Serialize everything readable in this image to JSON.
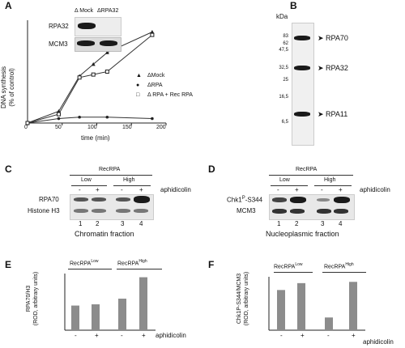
{
  "panels": {
    "A": {
      "letter": "A",
      "ylabel": "DNA synthesis\n(% of control)",
      "ylabel_line1": "DNA synthesis",
      "ylabel_line2": "(% of control)",
      "xlabel": "time (min)",
      "xticks": [
        "0",
        "50",
        "100",
        "150",
        "200"
      ],
      "inset": {
        "col1": "Δ Mock",
        "col2": "ΔRPA32",
        "row1": "RPA32",
        "row2": "MCM3"
      },
      "legend": [
        "ΔMock",
        "ΔRPA",
        "Δ RPA + Rec RPA"
      ],
      "chart_data": {
        "type": "line",
        "xlabel": "time (min)",
        "ylabel": "DNA synthesis (% of control)",
        "xlim": [
          0,
          200
        ],
        "series": [
          {
            "name": "ΔMock",
            "marker": "triangle",
            "x": [
              0,
              45,
              75,
              95,
              115,
              180
            ],
            "y": [
              0,
              8,
              32,
              40,
              48,
              62
            ]
          },
          {
            "name": "ΔRPA",
            "marker": "circle",
            "x": [
              0,
              45,
              75,
              115,
              180
            ],
            "y": [
              0,
              3,
              4,
              4,
              3
            ]
          },
          {
            "name": "Δ RPA + Rec RPA",
            "marker": "square",
            "x": [
              0,
              45,
              75,
              95,
              115,
              180
            ],
            "y": [
              0,
              6,
              31,
              33,
              35,
              60
            ]
          }
        ]
      }
    },
    "B": {
      "letter": "B",
      "unit": "kDa",
      "markers": [
        "83",
        "62",
        "47,5",
        "32,5",
        "25",
        "16,5",
        "6,5"
      ],
      "bands": [
        "RPA70",
        "RPA32",
        "RPA11"
      ]
    },
    "C": {
      "letter": "C",
      "header": "RecRPA",
      "groups": [
        "Low",
        "High"
      ],
      "signs": [
        "-",
        "+",
        "-",
        "+"
      ],
      "treatment": "aphidicolin",
      "rows": [
        "RPA70",
        "Histone H3"
      ],
      "lanes": [
        "1",
        "2",
        "3",
        "4"
      ],
      "caption": "Chromatin fraction"
    },
    "D": {
      "letter": "D",
      "header": "RecRPA",
      "groups": [
        "Low",
        "High"
      ],
      "signs": [
        "-",
        "+",
        "-",
        "+"
      ],
      "treatment": "aphidicolin",
      "rows": [
        "Chk1P-S344",
        "MCM3"
      ],
      "row1_main": "Chk1",
      "row1_sup": "P",
      "row1_tail": "-S344",
      "lanes": [
        "1",
        "2",
        "3",
        "4"
      ],
      "caption": "Nucleoplasmic fraction"
    },
    "E": {
      "letter": "E",
      "ylabel_line1": "RPA70/H3",
      "ylabel_line2": "(ROD, arbitrary units)",
      "group1_main": "RecRPA",
      "group1_sup": "Low",
      "group2_main": "RecRPA",
      "group2_sup": "High",
      "treatment": "aphidicolin",
      "signs": [
        "-",
        "+",
        "-",
        "+"
      ],
      "chart_data": {
        "type": "bar",
        "categories": [
          "-",
          "+",
          "-",
          "+"
        ],
        "values": [
          100,
          105,
          128,
          215
        ],
        "ylabel": "RPA70/H3 (ROD, arbitrary units)",
        "ylim": [
          0,
          230
        ]
      }
    },
    "F": {
      "letter": "F",
      "ylabel_line1": "Chk1P-S344/MCM3",
      "ylabel_line2": "(ROD, arbitrary units)",
      "group1_main": "RecRPA",
      "group1_sup": "Low",
      "group2_main": "RecRPA",
      "group2_sup": "High",
      "treatment": "aphidicolin",
      "signs": [
        "-",
        "+",
        "-",
        "+"
      ],
      "chart_data": {
        "type": "bar",
        "categories": [
          "-",
          "+",
          "-",
          "+"
        ],
        "values": [
          158,
          185,
          50,
          190
        ],
        "ylabel": "Chk1P-S344/MCM3 (ROD, arbitrary units)",
        "ylim": [
          0,
          210
        ]
      }
    }
  }
}
